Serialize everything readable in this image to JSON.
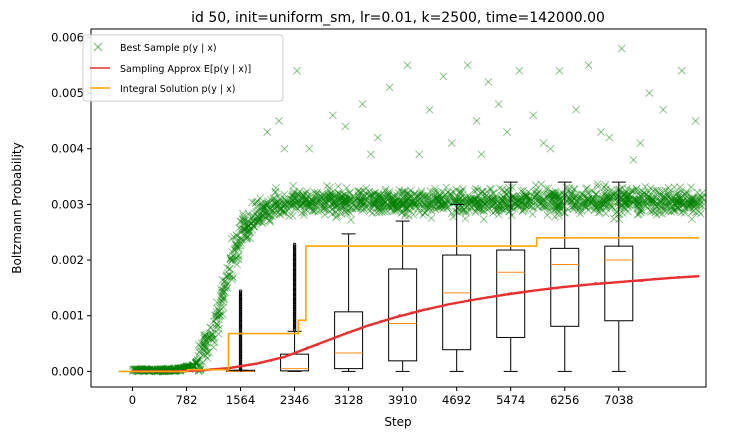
{
  "chart_data": {
    "type": "scatter",
    "title": "id 50, init=uniform_sm, lr=0.01, k=2500, time=142000.00",
    "xlabel": "Step",
    "ylabel": "Boltzmann Probability",
    "xlim": [
      -600,
      8300
    ],
    "ylim": [
      -0.00028,
      0.00615
    ],
    "x_ticks": [
      0,
      782,
      1564,
      2346,
      3128,
      3910,
      4692,
      5474,
      6256,
      7038
    ],
    "y_ticks": [
      0.0,
      0.001,
      0.002,
      0.003,
      0.004,
      0.005,
      0.006
    ],
    "y_tick_labels": [
      "0.000",
      "0.001",
      "0.002",
      "0.003",
      "0.004",
      "0.005",
      "0.006"
    ],
    "grid": false,
    "legend_position": "top-left",
    "colors": {
      "best_sample": "#008000",
      "sampling_approx": "#e83030",
      "integral_solution": "#ffa500",
      "box": "#000000",
      "median": "#ff8c1a"
    },
    "series": [
      {
        "name": "Best Sample p(y | x)",
        "kind": "scatter",
        "marker": "x",
        "band_profile": [
          [
            0,
            2e-05
          ],
          [
            600,
            2e-05
          ],
          [
            900,
            0.0001
          ],
          [
            1150,
            0.0006
          ],
          [
            1350,
            0.0016
          ],
          [
            1550,
            0.0024
          ],
          [
            1800,
            0.0028
          ],
          [
            2100,
            0.003
          ],
          [
            2500,
            0.00305
          ],
          [
            8250,
            0.00305
          ]
        ],
        "band_spread": 0.00022,
        "outliers": [
          {
            "x": 1950,
            "y": 0.0043
          },
          {
            "x": 2120,
            "y": 0.0045
          },
          {
            "x": 2380,
            "y": 0.0054
          },
          {
            "x": 2560,
            "y": 0.004
          },
          {
            "x": 2900,
            "y": 0.0046
          },
          {
            "x": 3080,
            "y": 0.0044
          },
          {
            "x": 3330,
            "y": 0.0048
          },
          {
            "x": 3550,
            "y": 0.0042
          },
          {
            "x": 3720,
            "y": 0.0051
          },
          {
            "x": 3980,
            "y": 0.0055
          },
          {
            "x": 4150,
            "y": 0.0039
          },
          {
            "x": 4300,
            "y": 0.0047
          },
          {
            "x": 4500,
            "y": 0.0053
          },
          {
            "x": 4620,
            "y": 0.0041
          },
          {
            "x": 4850,
            "y": 0.0055
          },
          {
            "x": 4980,
            "y": 0.0045
          },
          {
            "x": 5150,
            "y": 0.0052
          },
          {
            "x": 5300,
            "y": 0.0048
          },
          {
            "x": 5420,
            "y": 0.0043
          },
          {
            "x": 5600,
            "y": 0.0054
          },
          {
            "x": 5800,
            "y": 0.0046
          },
          {
            "x": 5950,
            "y": 0.0041
          },
          {
            "x": 6180,
            "y": 0.0054
          },
          {
            "x": 6420,
            "y": 0.0047
          },
          {
            "x": 6600,
            "y": 0.0055
          },
          {
            "x": 6780,
            "y": 0.0043
          },
          {
            "x": 6900,
            "y": 0.0042
          },
          {
            "x": 7080,
            "y": 0.0058
          },
          {
            "x": 7250,
            "y": 0.0038
          },
          {
            "x": 7480,
            "y": 0.005
          },
          {
            "x": 7680,
            "y": 0.0047
          },
          {
            "x": 7950,
            "y": 0.0054
          },
          {
            "x": 8150,
            "y": 0.0045
          },
          {
            "x": 2200,
            "y": 0.004
          },
          {
            "x": 3450,
            "y": 0.0039
          },
          {
            "x": 5050,
            "y": 0.0039
          },
          {
            "x": 6050,
            "y": 0.004
          },
          {
            "x": 7350,
            "y": 0.0041
          }
        ]
      },
      {
        "name": "Sampling Approx E[p(y | x)]",
        "kind": "line",
        "x": [
          0,
          600,
          1000,
          1400,
          1800,
          2200,
          2600,
          3000,
          3400,
          3800,
          4200,
          4600,
          5000,
          5400,
          5800,
          6200,
          6600,
          7000,
          7400,
          7800,
          8200
        ],
        "y": [
          0.0,
          0.0,
          2e-05,
          6e-05,
          0.00014,
          0.00026,
          0.00045,
          0.00064,
          0.00082,
          0.00097,
          0.0011,
          0.00121,
          0.0013,
          0.00138,
          0.00145,
          0.00151,
          0.00156,
          0.0016,
          0.00164,
          0.00168,
          0.00171
        ]
      },
      {
        "name": "Integral Solution p(y | x)",
        "kind": "step",
        "x": [
          -200,
          800,
          800,
          1390,
          1390,
          2400,
          2400,
          2510,
          2510,
          5850,
          5850,
          8200
        ],
        "y": [
          0.0,
          0.0,
          3e-05,
          3e-05,
          0.00068,
          0.00068,
          0.00092,
          0.00092,
          0.00225,
          0.00225,
          0.0024,
          0.0024
        ]
      }
    ],
    "boxplots": [
      {
        "x": 1564,
        "whislo": 0.0,
        "q1": 0.0,
        "med": 0.0,
        "q3": 2e-05,
        "whishi": 2e-05
      },
      {
        "x": 2346,
        "whislo": 0.0,
        "q1": 1e-05,
        "med": 5e-05,
        "q3": 0.00031,
        "whishi": 0.00072
      },
      {
        "x": 3128,
        "whislo": 0.0,
        "q1": 5e-05,
        "med": 0.00033,
        "q3": 0.00107,
        "whishi": 0.00247
      },
      {
        "x": 3910,
        "whislo": 0.0,
        "q1": 0.00019,
        "med": 0.00086,
        "q3": 0.00184,
        "whishi": 0.0027
      },
      {
        "x": 4692,
        "whislo": 0.0,
        "q1": 0.00039,
        "med": 0.00141,
        "q3": 0.00209,
        "whishi": 0.003
      },
      {
        "x": 5474,
        "whislo": 0.0,
        "q1": 0.00061,
        "med": 0.00178,
        "q3": 0.00218,
        "whishi": 0.0034
      },
      {
        "x": 6256,
        "whislo": 0.0,
        "q1": 0.00081,
        "med": 0.00192,
        "q3": 0.00221,
        "whishi": 0.0034
      },
      {
        "x": 7038,
        "whislo": 0.0,
        "q1": 0.00091,
        "med": 0.002,
        "q3": 0.00225,
        "whishi": 0.0034
      }
    ],
    "outlier_columns": [
      {
        "x": 1564,
        "y_from": 3e-05,
        "y_to": 0.00145
      },
      {
        "x": 2346,
        "y_from": 0.00075,
        "y_to": 0.0023
      }
    ]
  }
}
